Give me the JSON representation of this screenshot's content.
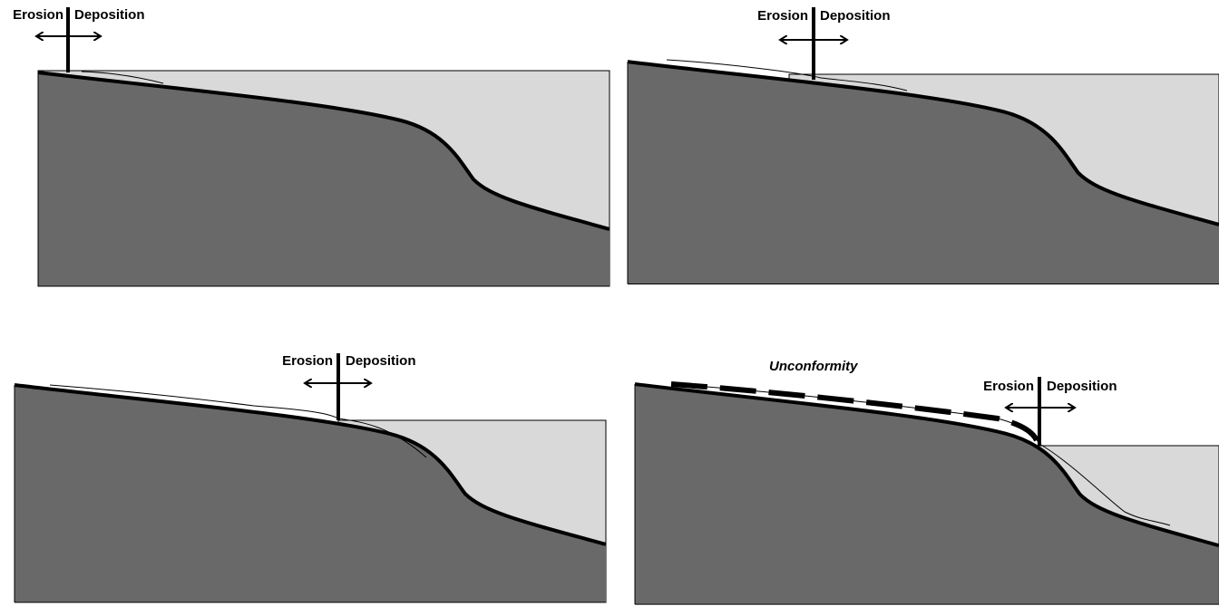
{
  "panels": [
    {
      "erosion_label": "Erosion",
      "deposition_label": "Deposition"
    },
    {
      "erosion_label": "Erosion",
      "deposition_label": "Deposition"
    },
    {
      "erosion_label": "Erosion",
      "deposition_label": "Deposition"
    },
    {
      "erosion_label": "Erosion",
      "deposition_label": "Deposition"
    }
  ],
  "unconformity_label": "Unconformity"
}
